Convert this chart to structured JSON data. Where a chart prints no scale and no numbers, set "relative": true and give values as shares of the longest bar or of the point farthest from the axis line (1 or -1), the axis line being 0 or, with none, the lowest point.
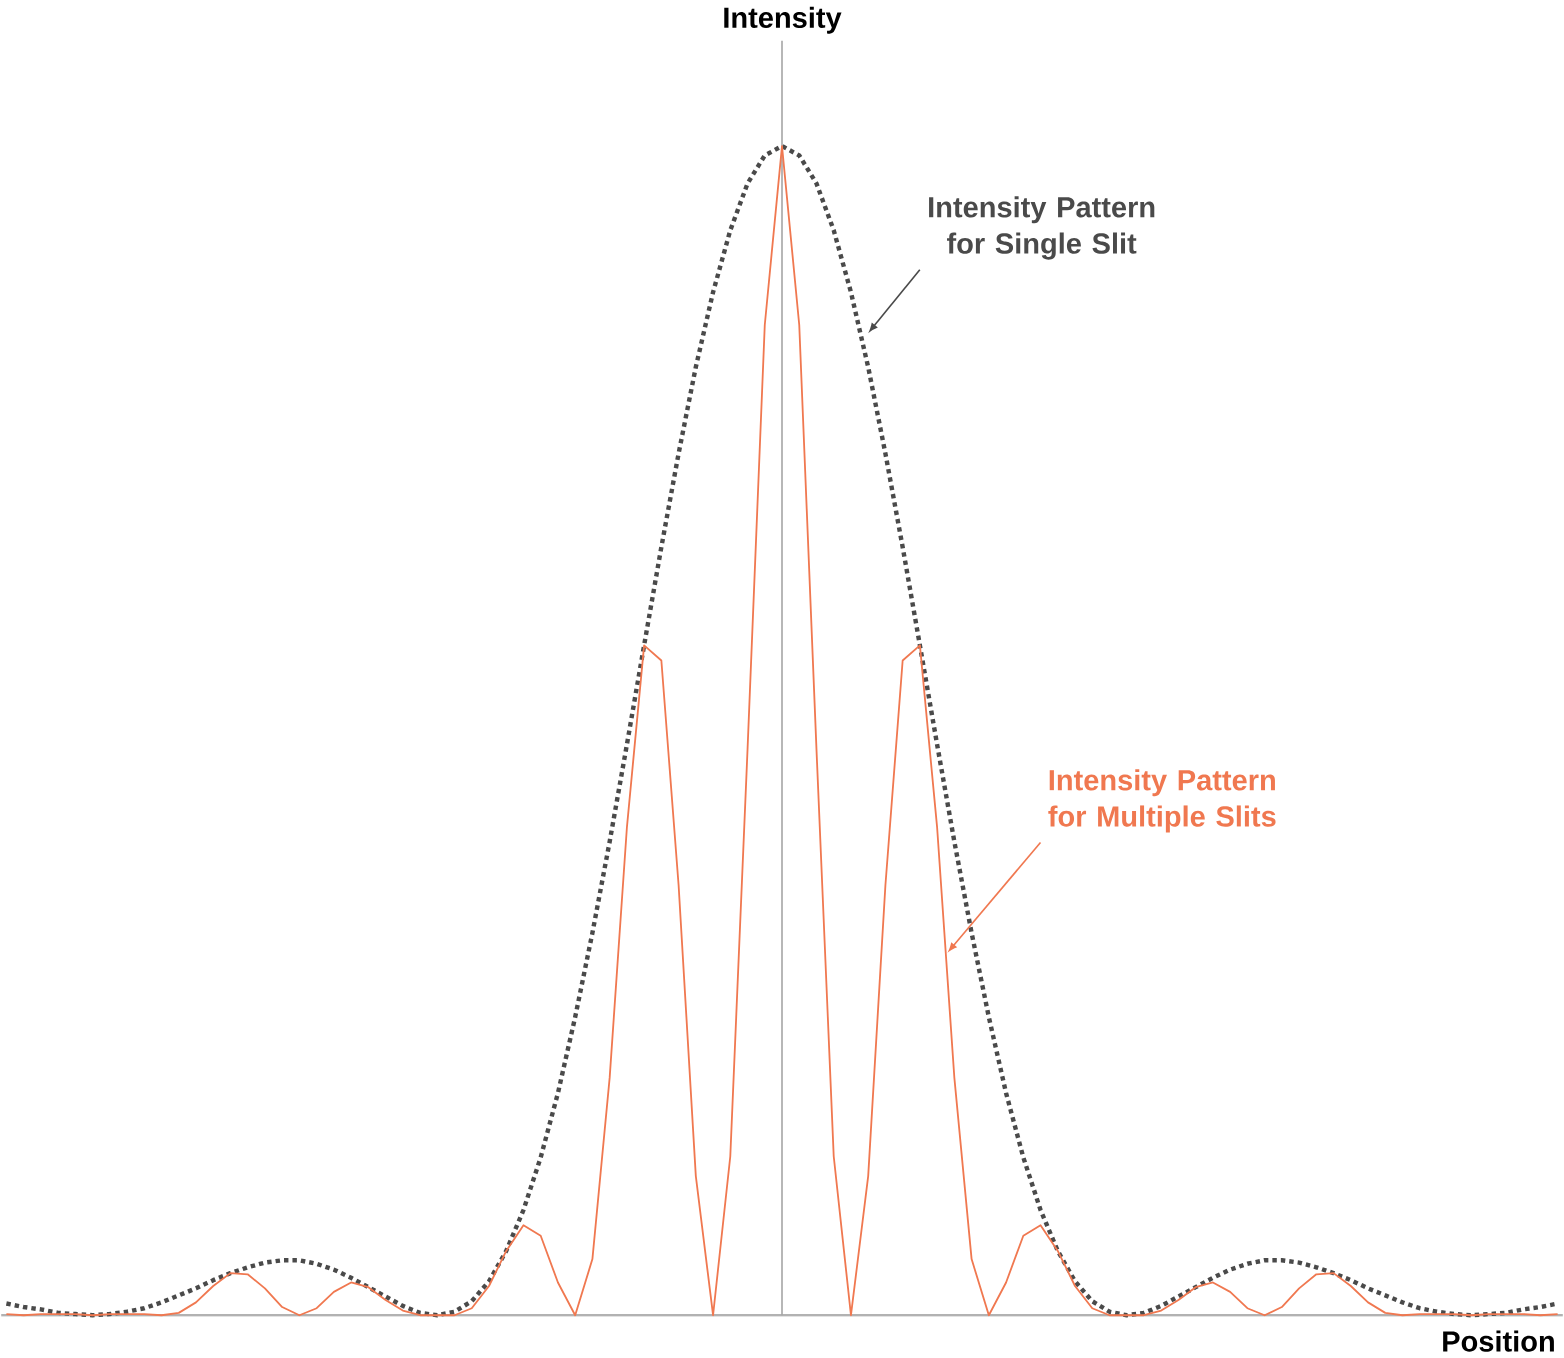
{
  "chart_data": {
    "type": "line",
    "relative": true,
    "xlabel": "Position",
    "ylabel": "Intensity",
    "marker": "none",
    "categories": [
      null,
      null,
      null,
      null,
      null,
      null,
      null,
      null,
      null,
      null,
      null,
      null,
      null,
      null,
      null,
      null,
      null,
      null,
      null,
      null,
      null,
      null,
      null,
      null,
      null,
      null,
      null,
      null,
      null,
      null,
      null,
      null,
      null,
      null,
      null,
      null,
      null,
      null,
      null,
      null,
      null,
      null,
      null,
      null,
      null,
      null,
      null,
      null,
      null,
      null,
      null,
      null,
      null,
      null,
      null,
      null,
      null,
      null,
      null,
      null,
      null,
      null,
      null,
      null,
      null,
      null,
      null,
      null,
      null,
      null,
      null,
      null,
      null,
      null,
      null,
      null,
      null,
      null,
      null,
      null,
      null,
      null,
      null,
      null,
      null,
      null,
      null,
      null,
      null,
      null,
      null
    ],
    "series": [
      {
        "name": "Intensity Pattern for Single Slit",
        "color": "#4a4a4a",
        "line_style": "dotted",
        "values": [
          0.01,
          0.007,
          0.005,
          0.002,
          0.001,
          0,
          0.001,
          0.003,
          0.006,
          0.011,
          0.017,
          0.023,
          0.03,
          0.036,
          0.041,
          0.045,
          0.047,
          0.047,
          0.044,
          0.039,
          0.032,
          0.024,
          0.016,
          0.008,
          0.002,
          0,
          0.003,
          0.012,
          0.029,
          0.055,
          0.09,
          0.135,
          0.19,
          0.255,
          0.327,
          0.405,
          0.488,
          0.573,
          0.657,
          0.737,
          0.811,
          0.875,
          0.928,
          0.968,
          0.992,
          1,
          0.992,
          0.968,
          0.928,
          0.875,
          0.811,
          0.737,
          0.657,
          0.573,
          0.488,
          0.405,
          0.327,
          0.255,
          0.19,
          0.135,
          0.09,
          0.055,
          0.029,
          0.012,
          0.003,
          0,
          0.002,
          0.008,
          0.016,
          0.024,
          0.032,
          0.039,
          0.044,
          0.047,
          0.047,
          0.045,
          0.041,
          0.036,
          0.03,
          0.023,
          0.017,
          0.011,
          0.006,
          0.003,
          0.001,
          0,
          0.001,
          0.002,
          0.005,
          0.007,
          0.01
        ]
      },
      {
        "name": "Intensity Pattern for Multiple Slits",
        "color": "#f07850",
        "line_style": "solid",
        "values": [
          0.001,
          0,
          0.001,
          0.001,
          0.001,
          0,
          0.001,
          0.001,
          0.001,
          0,
          0.002,
          0.011,
          0.025,
          0.036,
          0.035,
          0.023,
          0.007,
          0,
          0.006,
          0.02,
          0.028,
          0.024,
          0.013,
          0.004,
          0,
          0,
          0,
          0.006,
          0.025,
          0.055,
          0.077,
          0.068,
          0.028,
          0,
          0.048,
          0.203,
          0.417,
          0.573,
          0.56,
          0.368,
          0.119,
          0,
          0.136,
          0.484,
          0.847,
          1,
          0.847,
          0.484,
          0.136,
          0,
          0.119,
          0.368,
          0.56,
          0.573,
          0.417,
          0.203,
          0.048,
          0,
          0.028,
          0.068,
          0.077,
          0.055,
          0.025,
          0.006,
          0,
          0,
          0,
          0.004,
          0.013,
          0.024,
          0.028,
          0.02,
          0.006,
          0,
          0.007,
          0.023,
          0.035,
          0.036,
          0.025,
          0.011,
          0.002,
          0,
          0.001,
          0.001,
          0.001,
          0,
          0.001,
          0.001,
          0.001,
          0,
          0.001
        ]
      }
    ]
  }
}
